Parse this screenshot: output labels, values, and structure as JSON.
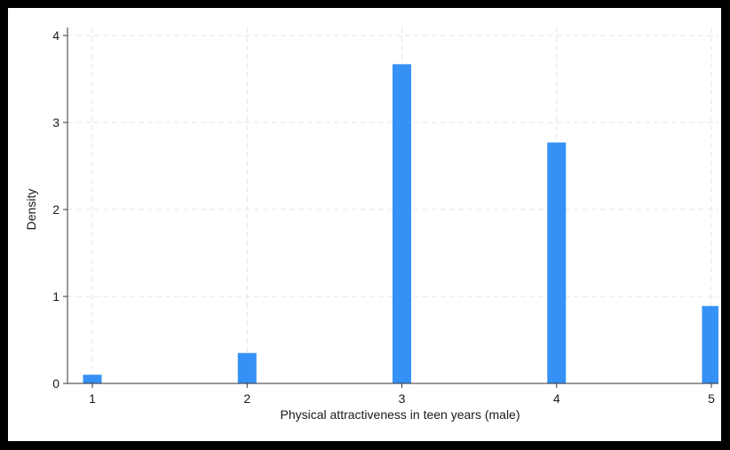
{
  "chart_data": {
    "type": "bar",
    "title": "",
    "xlabel": "Physical attractiveness in teen years (male)",
    "ylabel": "Density",
    "categories": [
      1,
      2,
      3,
      4,
      5
    ],
    "values": [
      0.1,
      0.35,
      3.67,
      2.77,
      0.89
    ],
    "xlim": [
      1,
      5
    ],
    "ylim": [
      0,
      4
    ],
    "xticks": [
      "1",
      "2",
      "3",
      "4",
      "5"
    ],
    "yticks": [
      "0",
      "1",
      "2",
      "3",
      "4"
    ],
    "grid": true,
    "legend": "none",
    "colors": {
      "bar": "#3591f5",
      "grid": "#e6e6e6",
      "axis": "#333333",
      "background": "#ffffff",
      "border": "#000000"
    }
  }
}
